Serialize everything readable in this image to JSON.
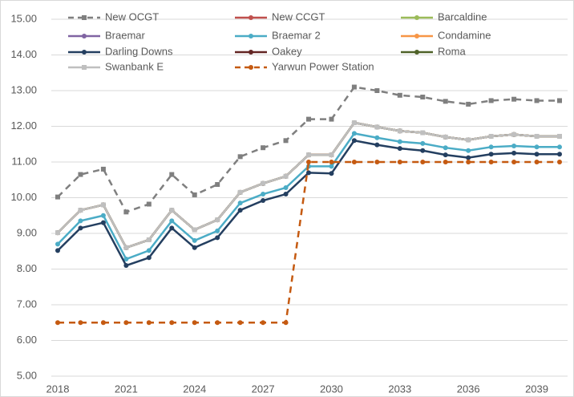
{
  "chart_data": {
    "type": "line",
    "x": [
      2018,
      2019,
      2020,
      2021,
      2022,
      2023,
      2024,
      2025,
      2026,
      2027,
      2028,
      2029,
      2030,
      2031,
      2032,
      2033,
      2034,
      2035,
      2036,
      2037,
      2038,
      2039,
      2040
    ],
    "xlim": [
      2018,
      2040
    ],
    "xticks": [
      2018,
      2021,
      2024,
      2027,
      2030,
      2033,
      2036,
      2039
    ],
    "ylim": [
      5,
      15
    ],
    "yticks": [
      {
        "value": 5,
        "label": "5.00"
      },
      {
        "value": 6,
        "label": "6.00"
      },
      {
        "value": 7,
        "label": "7.00"
      },
      {
        "value": 8,
        "label": "8.00"
      },
      {
        "value": 9,
        "label": "9.00"
      },
      {
        "value": 10,
        "label": "10.00"
      },
      {
        "value": 11,
        "label": "11.00"
      },
      {
        "value": 12,
        "label": "12.00"
      },
      {
        "value": 13,
        "label": "13.00"
      },
      {
        "value": 14,
        "label": "14.00"
      },
      {
        "value": 15,
        "label": "15.00"
      }
    ],
    "grid": true,
    "series": [
      {
        "name": "New OCGT",
        "color": "#7f7f7f",
        "dash": true,
        "marker": "square",
        "values": [
          10.02,
          10.65,
          10.8,
          9.6,
          9.82,
          10.65,
          10.08,
          10.37,
          11.15,
          11.4,
          11.6,
          12.2,
          12.2,
          13.1,
          13.0,
          12.87,
          12.82,
          12.7,
          12.62,
          12.72,
          12.76,
          12.72,
          12.72
        ]
      },
      {
        "name": "New CCGT",
        "color": "#c0504d",
        "marker": "circle",
        "values": [
          9.02,
          9.65,
          9.8,
          8.6,
          8.82,
          9.65,
          9.1,
          9.38,
          10.15,
          10.4,
          10.6,
          11.2,
          11.2,
          12.1,
          11.98,
          11.87,
          11.82,
          11.7,
          11.62,
          11.72,
          11.77,
          11.72,
          11.72
        ]
      },
      {
        "name": "Barcaldine",
        "color": "#9bbb59",
        "marker": "circle",
        "values": [
          9.02,
          9.65,
          9.8,
          8.6,
          8.82,
          9.65,
          9.1,
          9.38,
          10.15,
          10.4,
          10.6,
          11.2,
          11.2,
          12.1,
          11.98,
          11.87,
          11.82,
          11.7,
          11.62,
          11.72,
          11.77,
          11.72,
          11.72
        ]
      },
      {
        "name": "Braemar",
        "color": "#8064a2",
        "marker": "circle",
        "values": [
          9.02,
          9.65,
          9.8,
          8.6,
          8.82,
          9.65,
          9.1,
          9.38,
          10.15,
          10.4,
          10.6,
          11.2,
          11.2,
          12.1,
          11.98,
          11.87,
          11.82,
          11.7,
          11.62,
          11.72,
          11.77,
          11.72,
          11.72
        ]
      },
      {
        "name": "Braemar 2",
        "color": "#4bacc6",
        "marker": "circle",
        "values": [
          8.7,
          9.35,
          9.5,
          8.28,
          8.52,
          9.35,
          8.8,
          9.07,
          9.85,
          10.1,
          10.28,
          10.88,
          10.88,
          11.8,
          11.68,
          11.57,
          11.52,
          11.4,
          11.32,
          11.42,
          11.45,
          11.42,
          11.42
        ]
      },
      {
        "name": "Condamine",
        "color": "#f79646",
        "marker": "circle",
        "values": [
          9.02,
          9.65,
          9.8,
          8.6,
          8.82,
          9.65,
          9.1,
          9.38,
          10.15,
          10.4,
          10.6,
          11.2,
          11.2,
          12.1,
          11.98,
          11.87,
          11.82,
          11.7,
          11.62,
          11.72,
          11.77,
          11.72,
          11.72
        ]
      },
      {
        "name": "Darling Downs",
        "color": "#243f60",
        "marker": "circle",
        "values": [
          8.52,
          9.15,
          9.3,
          8.1,
          8.32,
          9.15,
          8.6,
          8.88,
          9.65,
          9.92,
          10.1,
          10.7,
          10.68,
          11.6,
          11.48,
          11.38,
          11.32,
          11.2,
          11.12,
          11.22,
          11.25,
          11.22,
          11.22
        ]
      },
      {
        "name": "Oakey",
        "color": "#632523",
        "marker": "circle",
        "values": [
          9.02,
          9.65,
          9.8,
          8.6,
          8.82,
          9.65,
          9.1,
          9.38,
          10.15,
          10.4,
          10.6,
          11.2,
          11.2,
          12.1,
          11.98,
          11.87,
          11.82,
          11.7,
          11.62,
          11.72,
          11.77,
          11.72,
          11.72
        ]
      },
      {
        "name": "Roma",
        "color": "#4f6228",
        "marker": "circle",
        "values": [
          9.02,
          9.65,
          9.8,
          8.6,
          8.82,
          9.65,
          9.1,
          9.38,
          10.15,
          10.4,
          10.6,
          11.2,
          11.2,
          12.1,
          11.98,
          11.87,
          11.82,
          11.7,
          11.62,
          11.72,
          11.77,
          11.72,
          11.72
        ]
      },
      {
        "name": "Swanbank E",
        "color": "#bfbfbf",
        "marker": "square",
        "values": [
          9.02,
          9.65,
          9.8,
          8.6,
          8.82,
          9.65,
          9.1,
          9.38,
          10.15,
          10.4,
          10.6,
          11.2,
          11.2,
          12.1,
          11.98,
          11.87,
          11.82,
          11.7,
          11.62,
          11.72,
          11.77,
          11.72,
          11.72
        ]
      },
      {
        "name": "Yarwun Power Station",
        "color": "#c55a11",
        "dash": true,
        "marker": "circle",
        "values": [
          6.5,
          6.5,
          6.5,
          6.5,
          6.5,
          6.5,
          6.5,
          6.5,
          6.5,
          6.5,
          6.5,
          11.0,
          11.0,
          11.0,
          11.0,
          11.0,
          11.0,
          11.0,
          11.0,
          11.0,
          11.0,
          11.0,
          11.0
        ]
      }
    ]
  }
}
